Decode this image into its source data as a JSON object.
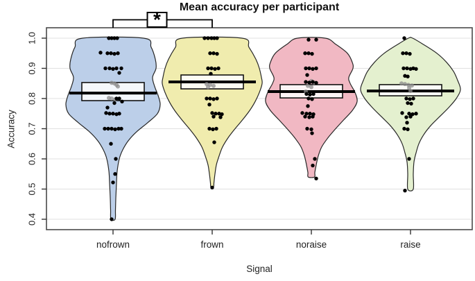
{
  "chart_data": {
    "type": "violin",
    "title": "Mean accuracy per participant",
    "xlabel": "Signal",
    "ylabel": "Accuracy",
    "categories": [
      "nofrown",
      "frown",
      "noraise",
      "raise"
    ],
    "ytick_labels": [
      "0.4",
      "0.5",
      "0.6",
      "0.7",
      "0.8",
      "0.9",
      "1.0"
    ],
    "ylim": [
      0.365,
      1.035
    ],
    "grid": true,
    "legend": "none",
    "significance": {
      "from": "nofrown",
      "to": "frown",
      "label": "*"
    },
    "colors": {
      "nofrown_fill": "#bccfe9",
      "frown_fill": "#f0ecae",
      "noraise_fill": "#f1b8c3",
      "raise_fill": "#e4f0cf",
      "violin_outline": "#262626",
      "box_fill": "rgba(255,255,255,0.85)",
      "box_stroke": "#111111",
      "mean_line": "#000000",
      "point": "#000000",
      "grey_point": "#8c8c8c",
      "gridline": "#e1e1e1",
      "plot_border": "#4a4a4a",
      "tick": "#333333"
    },
    "series": [
      {
        "name": "nofrown",
        "fill": "#bccfe9",
        "box": {
          "q1": 0.793,
          "q3": 0.853,
          "mean": 0.818
        },
        "width_profile": [
          [
            1.0,
            44
          ],
          [
            0.97,
            55
          ],
          [
            0.93,
            61
          ],
          [
            0.9,
            62
          ],
          [
            0.87,
            57
          ],
          [
            0.84,
            60
          ],
          [
            0.81,
            65
          ],
          [
            0.78,
            68
          ],
          [
            0.75,
            64
          ],
          [
            0.72,
            50
          ],
          [
            0.69,
            34
          ],
          [
            0.66,
            22
          ],
          [
            0.63,
            14
          ],
          [
            0.6,
            9
          ],
          [
            0.56,
            6
          ],
          [
            0.52,
            5
          ],
          [
            0.47,
            4
          ],
          [
            0.43,
            3.5
          ],
          [
            0.4,
            3
          ]
        ],
        "points": [
          [
            1.0,
            -6
          ],
          [
            1.0,
            -2
          ],
          [
            1.0,
            2
          ],
          [
            1.0,
            6
          ],
          [
            0.952,
            -18
          ],
          [
            0.95,
            -8
          ],
          [
            0.95,
            -3
          ],
          [
            0.948,
            2
          ],
          [
            0.95,
            7
          ],
          [
            0.9,
            -11
          ],
          [
            0.9,
            -5
          ],
          [
            0.898,
            0
          ],
          [
            0.9,
            5
          ],
          [
            0.885,
            9
          ],
          [
            0.9,
            12
          ],
          [
            0.8,
            5
          ],
          [
            0.8,
            9
          ],
          [
            0.79,
            13
          ],
          [
            0.785,
            2
          ],
          [
            0.77,
            -8
          ],
          [
            0.752,
            -10
          ],
          [
            0.75,
            -5
          ],
          [
            0.75,
            0
          ],
          [
            0.748,
            5
          ],
          [
            0.75,
            9
          ],
          [
            0.7,
            -12
          ],
          [
            0.7,
            -7
          ],
          [
            0.7,
            -2
          ],
          [
            0.698,
            3
          ],
          [
            0.7,
            8
          ],
          [
            0.7,
            12
          ],
          [
            0.65,
            -3
          ],
          [
            0.6,
            4
          ],
          [
            0.55,
            3
          ],
          [
            0.522,
            0
          ],
          [
            0.4,
            -2
          ]
        ],
        "grey_points": [
          [
            0.852,
            -2
          ],
          [
            0.85,
            2
          ],
          [
            0.845,
            5
          ],
          [
            0.84,
            7
          ],
          [
            0.802,
            -6
          ],
          [
            0.8,
            -2
          ],
          [
            0.797,
            3
          ]
        ]
      },
      {
        "name": "frown",
        "fill": "#f0ecae",
        "box": {
          "q1": 0.832,
          "q3": 0.878,
          "mean": 0.855
        },
        "width_profile": [
          [
            1.0,
            43
          ],
          [
            0.97,
            53
          ],
          [
            0.93,
            63
          ],
          [
            0.9,
            68
          ],
          [
            0.87,
            71
          ],
          [
            0.85,
            72
          ],
          [
            0.82,
            68
          ],
          [
            0.79,
            62
          ],
          [
            0.76,
            54
          ],
          [
            0.73,
            44
          ],
          [
            0.7,
            33
          ],
          [
            0.67,
            23
          ],
          [
            0.64,
            15
          ],
          [
            0.61,
            10
          ],
          [
            0.58,
            6
          ],
          [
            0.55,
            4
          ],
          [
            0.52,
            2.5
          ],
          [
            0.508,
            2
          ]
        ],
        "points": [
          [
            1.0,
            -11
          ],
          [
            1.0,
            -6
          ],
          [
            1.0,
            -1
          ],
          [
            1.0,
            3
          ],
          [
            1.0,
            7
          ],
          [
            0.95,
            -3
          ],
          [
            0.95,
            2
          ],
          [
            0.948,
            7
          ],
          [
            0.9,
            -6
          ],
          [
            0.9,
            -1
          ],
          [
            0.898,
            4
          ],
          [
            0.9,
            9
          ],
          [
            0.882,
            -2
          ],
          [
            0.8,
            -8
          ],
          [
            0.8,
            -3
          ],
          [
            0.798,
            2
          ],
          [
            0.8,
            7
          ],
          [
            0.78,
            -4
          ],
          [
            0.752,
            0
          ],
          [
            0.75,
            5
          ],
          [
            0.75,
            10
          ],
          [
            0.748,
            14
          ],
          [
            0.74,
            2
          ],
          [
            0.738,
            12
          ],
          [
            0.7,
            -4
          ],
          [
            0.698,
            1
          ],
          [
            0.7,
            6
          ],
          [
            0.655,
            3
          ],
          [
            0.505,
            0
          ]
        ],
        "grey_points": [
          [
            0.848,
            -8
          ],
          [
            0.845,
            -3
          ],
          [
            0.842,
            2
          ],
          [
            0.838,
            -6
          ]
        ]
      },
      {
        "name": "noraise",
        "fill": "#f1b8c3",
        "box": {
          "q1": 0.802,
          "q3": 0.846,
          "mean": 0.823
        },
        "width_profile": [
          [
            1.0,
            20
          ],
          [
            0.98,
            35
          ],
          [
            0.95,
            52
          ],
          [
            0.92,
            59
          ],
          [
            0.9,
            60
          ],
          [
            0.87,
            54
          ],
          [
            0.85,
            56
          ],
          [
            0.82,
            63
          ],
          [
            0.79,
            66
          ],
          [
            0.76,
            59
          ],
          [
            0.73,
            47
          ],
          [
            0.7,
            35
          ],
          [
            0.67,
            24
          ],
          [
            0.64,
            15
          ],
          [
            0.61,
            10
          ],
          [
            0.58,
            7
          ],
          [
            0.555,
            5
          ],
          [
            0.54,
            4.5
          ]
        ],
        "points": [
          [
            0.995,
            -4
          ],
          [
            0.995,
            7
          ],
          [
            0.95,
            -9
          ],
          [
            0.95,
            -4
          ],
          [
            0.948,
            1
          ],
          [
            0.9,
            -8
          ],
          [
            0.9,
            -3
          ],
          [
            0.898,
            2
          ],
          [
            0.9,
            7
          ],
          [
            0.878,
            -6
          ],
          [
            0.855,
            -8
          ],
          [
            0.853,
            -3
          ],
          [
            0.855,
            2
          ],
          [
            0.852,
            7
          ],
          [
            0.815,
            -7
          ],
          [
            0.813,
            -2
          ],
          [
            0.815,
            3
          ],
          [
            0.8,
            -4
          ],
          [
            0.798,
            1
          ],
          [
            0.775,
            -5
          ],
          [
            0.752,
            -13
          ],
          [
            0.75,
            -7
          ],
          [
            0.75,
            -2
          ],
          [
            0.748,
            3
          ],
          [
            0.74,
            -9
          ],
          [
            0.738,
            -3
          ],
          [
            0.74,
            2
          ],
          [
            0.7,
            -6
          ],
          [
            0.698,
            0
          ],
          [
            0.685,
            1
          ],
          [
            0.6,
            5
          ],
          [
            0.578,
            2
          ],
          [
            0.535,
            7
          ]
        ],
        "grey_points": [
          [
            0.858,
            0
          ],
          [
            0.853,
            4
          ],
          [
            0.842,
            -5
          ],
          [
            0.838,
            0
          ],
          [
            0.823,
            -8
          ]
        ]
      },
      {
        "name": "raise",
        "fill": "#e4f0cf",
        "box": {
          "q1": 0.809,
          "q3": 0.846,
          "mean": 0.825
        },
        "width_profile": [
          [
            1.0,
            3
          ],
          [
            0.98,
            18
          ],
          [
            0.95,
            38
          ],
          [
            0.92,
            52
          ],
          [
            0.89,
            62
          ],
          [
            0.86,
            68
          ],
          [
            0.83,
            72
          ],
          [
            0.8,
            66
          ],
          [
            0.77,
            55
          ],
          [
            0.74,
            42
          ],
          [
            0.71,
            29
          ],
          [
            0.68,
            19
          ],
          [
            0.65,
            12
          ],
          [
            0.62,
            8
          ],
          [
            0.59,
            5
          ],
          [
            0.55,
            4
          ],
          [
            0.5,
            4
          ]
        ],
        "points": [
          [
            1.0,
            -9
          ],
          [
            0.95,
            -11
          ],
          [
            0.95,
            -6
          ],
          [
            0.948,
            -1
          ],
          [
            0.9,
            -10
          ],
          [
            0.9,
            -5
          ],
          [
            0.898,
            0
          ],
          [
            0.9,
            4
          ],
          [
            0.898,
            8
          ],
          [
            0.875,
            -8
          ],
          [
            0.873,
            -4
          ],
          [
            0.8,
            -6
          ],
          [
            0.798,
            -1
          ],
          [
            0.8,
            4
          ],
          [
            0.785,
            -4
          ],
          [
            0.783,
            1
          ],
          [
            0.752,
            -12
          ],
          [
            0.75,
            -2
          ],
          [
            0.748,
            3
          ],
          [
            0.75,
            8
          ],
          [
            0.738,
            -6
          ],
          [
            0.74,
            0
          ],
          [
            0.72,
            -5
          ],
          [
            0.7,
            -9
          ],
          [
            0.698,
            -4
          ],
          [
            0.6,
            -2
          ],
          [
            0.495,
            -8
          ]
        ],
        "grey_points": [
          [
            0.85,
            -13
          ],
          [
            0.848,
            -8
          ],
          [
            0.845,
            -3
          ],
          [
            0.843,
            2
          ],
          [
            0.835,
            -2
          ],
          [
            0.825,
            0
          ]
        ]
      }
    ]
  }
}
